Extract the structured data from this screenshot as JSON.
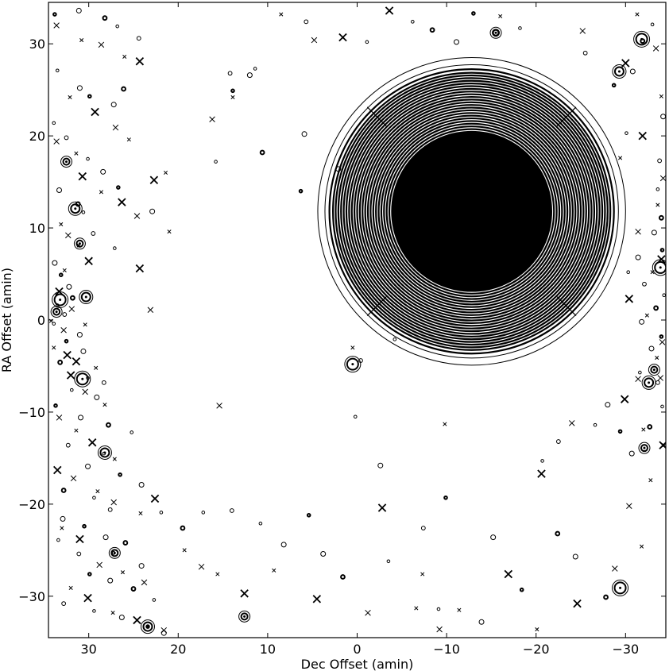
{
  "chart_data": {
    "type": "scatter",
    "title": "",
    "xlabel": "Dec Offset (amin)",
    "ylabel": "RA Offset (amin)",
    "xlim": [
      34.5,
      -34.5
    ],
    "ylim": [
      -34.5,
      34.5
    ],
    "x_ticks": [
      30,
      20,
      10,
      0,
      -10,
      -20,
      -30
    ],
    "y_ticks": [
      30,
      20,
      10,
      0,
      -10,
      -20,
      -30
    ],
    "x_tick_labels": [
      "30",
      "20",
      "10",
      "0",
      "−10",
      "−20",
      "−30"
    ],
    "y_tick_labels": [
      "30",
      "20",
      "10",
      "0",
      "−10",
      "−20",
      "−30"
    ],
    "grid": false,
    "legend": "none",
    "colors": {
      "ink": "#000000",
      "background": "#ffffff"
    },
    "series": [
      {
        "marker": "circle",
        "points": [
          [
            33.8,
            33.2
          ],
          [
            31.1,
            33.6
          ],
          [
            28.2,
            32.8
          ],
          [
            26.8,
            31.9
          ],
          [
            24.4,
            30.6
          ],
          [
            33.5,
            27.1
          ],
          [
            31.0,
            25.2
          ],
          [
            29.9,
            24.3
          ],
          [
            27.2,
            23.4
          ],
          [
            26.1,
            25.1
          ],
          [
            33.9,
            21.4
          ],
          [
            32.5,
            19.8
          ],
          [
            30.1,
            17.5
          ],
          [
            28.4,
            16.1
          ],
          [
            26.7,
            14.4
          ],
          [
            33.3,
            14.1
          ],
          [
            31.2,
            12.6
          ],
          [
            30.6,
            11.7
          ],
          [
            29.5,
            9.4
          ],
          [
            27.1,
            7.8
          ],
          [
            33.8,
            6.2
          ],
          [
            33.1,
            4.9
          ],
          [
            32.2,
            3.6
          ],
          [
            31.8,
            2.4
          ],
          [
            33.5,
            1.6
          ],
          [
            32.7,
            0.6
          ],
          [
            33.9,
            -0.4
          ],
          [
            31.0,
            -1.6
          ],
          [
            32.5,
            -2.3
          ],
          [
            30.6,
            -3.4
          ],
          [
            33.2,
            -4.6
          ],
          [
            30.1,
            -6.3
          ],
          [
            28.3,
            -6.8
          ],
          [
            31.9,
            -7.6
          ],
          [
            29.1,
            -8.4
          ],
          [
            33.7,
            -9.3
          ],
          [
            30.9,
            -10.6
          ],
          [
            27.8,
            -11.4
          ],
          [
            25.2,
            -12.2
          ],
          [
            32.3,
            -13.6
          ],
          [
            28.3,
            -14.5
          ],
          [
            30.1,
            -15.9
          ],
          [
            26.5,
            -16.8
          ],
          [
            24.1,
            -17.9
          ],
          [
            32.8,
            -18.5
          ],
          [
            29.4,
            -19.3
          ],
          [
            27.6,
            -20.6
          ],
          [
            21.9,
            -20.9
          ],
          [
            32.9,
            -21.6
          ],
          [
            30.5,
            -22.4
          ],
          [
            28.1,
            -23.6
          ],
          [
            25.9,
            -24.2
          ],
          [
            33.4,
            -23.9
          ],
          [
            31.1,
            -25.4
          ],
          [
            27.2,
            -25.3
          ],
          [
            24.1,
            -26.7
          ],
          [
            29.9,
            -27.6
          ],
          [
            27.6,
            -28.3
          ],
          [
            25.0,
            -29.2
          ],
          [
            22.7,
            -30.4
          ],
          [
            32.8,
            -30.8
          ],
          [
            29.4,
            -31.6
          ],
          [
            26.3,
            -32.3
          ],
          [
            23.4,
            -33.3
          ],
          [
            21.6,
            -34.0
          ],
          [
            19.5,
            -22.6
          ],
          [
            17.2,
            -20.9
          ],
          [
            14.0,
            -20.7
          ],
          [
            10.8,
            -22.1
          ],
          [
            8.2,
            -24.4
          ],
          [
            5.4,
            -21.2
          ],
          [
            3.8,
            -25.4
          ],
          [
            1.6,
            -27.9
          ],
          [
            -3.5,
            -26.2
          ],
          [
            -7.4,
            -22.6
          ],
          [
            -9.1,
            -31.4
          ],
          [
            -13.9,
            -32.8
          ],
          [
            -18.4,
            -29.3
          ],
          [
            -24.4,
            -25.7
          ],
          [
            -27.8,
            -30.1
          ],
          [
            -20.7,
            -15.3
          ],
          [
            -22.5,
            -13.2
          ],
          [
            -26.6,
            -11.4
          ],
          [
            -28.0,
            -9.2
          ],
          [
            -29.4,
            -12.1
          ],
          [
            -30.7,
            -14.5
          ],
          [
            -32.7,
            -11.6
          ],
          [
            -34.1,
            -9.4
          ],
          [
            -33.6,
            -6.8
          ],
          [
            -31.6,
            -5.7
          ],
          [
            -32.9,
            -3.1
          ],
          [
            -34.0,
            -1.8
          ],
          [
            -31.8,
            -0.2
          ],
          [
            -33.4,
            1.3
          ],
          [
            -34.3,
            2.7
          ],
          [
            -32.1,
            3.9
          ],
          [
            -30.3,
            5.2
          ],
          [
            -31.4,
            6.8
          ],
          [
            -34.1,
            7.6
          ],
          [
            -33.2,
            9.5
          ],
          [
            -34.0,
            11.1
          ],
          [
            -33.6,
            14.2
          ],
          [
            -33.8,
            17.3
          ],
          [
            -30.1,
            20.3
          ],
          [
            -34.2,
            22.1
          ],
          [
            -28.7,
            25.5
          ],
          [
            -30.8,
            27.0
          ],
          [
            -31.9,
            30.3
          ],
          [
            -33.0,
            32.1
          ],
          [
            -25.5,
            29.0
          ],
          [
            -18.2,
            31.7
          ],
          [
            -15.5,
            31.2
          ],
          [
            -13.0,
            33.3
          ],
          [
            -11.1,
            30.2
          ],
          [
            -8.4,
            31.5
          ],
          [
            -6.2,
            32.4
          ],
          [
            5.7,
            32.4
          ],
          [
            -1.1,
            30.2
          ],
          [
            12.0,
            26.6
          ],
          [
            13.9,
            24.9
          ],
          [
            5.9,
            20.2
          ],
          [
            10.6,
            18.2
          ],
          [
            0.2,
            -10.5
          ],
          [
            -0.4,
            -4.4
          ],
          [
            -4.2,
            -2.1
          ],
          [
            -2.6,
            -15.8
          ],
          [
            -9.9,
            -19.3
          ],
          [
            -15.2,
            -23.6
          ],
          [
            -22.4,
            -23.2
          ],
          [
            15.8,
            17.2
          ],
          [
            14.2,
            26.8
          ],
          [
            11.4,
            27.3
          ],
          [
            2.1,
            16.4
          ],
          [
            6.3,
            14.0
          ],
          [
            22.9,
            11.8
          ]
        ]
      },
      {
        "marker": "cross",
        "points": [
          [
            33.6,
            32.0
          ],
          [
            30.8,
            30.4
          ],
          [
            28.6,
            29.9
          ],
          [
            26.0,
            28.6
          ],
          [
            24.3,
            28.1
          ],
          [
            32.1,
            24.2
          ],
          [
            29.3,
            22.6
          ],
          [
            27.0,
            20.9
          ],
          [
            25.5,
            19.6
          ],
          [
            33.6,
            19.4
          ],
          [
            31.4,
            18.1
          ],
          [
            30.7,
            15.6
          ],
          [
            28.6,
            13.9
          ],
          [
            26.3,
            12.8
          ],
          [
            24.6,
            11.3
          ],
          [
            33.1,
            10.4
          ],
          [
            32.3,
            9.2
          ],
          [
            31.1,
            8.1
          ],
          [
            30.0,
            6.4
          ],
          [
            32.7,
            5.4
          ],
          [
            33.3,
            3.1
          ],
          [
            31.9,
            1.2
          ],
          [
            30.4,
            -0.5
          ],
          [
            32.8,
            -1.1
          ],
          [
            33.9,
            -3.0
          ],
          [
            31.4,
            -4.5
          ],
          [
            29.2,
            -5.2
          ],
          [
            32.0,
            -6.0
          ],
          [
            30.4,
            -7.8
          ],
          [
            28.2,
            -9.2
          ],
          [
            33.3,
            -10.6
          ],
          [
            31.4,
            -12.0
          ],
          [
            29.6,
            -13.3
          ],
          [
            27.1,
            -15.1
          ],
          [
            33.5,
            -16.3
          ],
          [
            31.7,
            -17.2
          ],
          [
            29.0,
            -18.6
          ],
          [
            27.2,
            -19.8
          ],
          [
            24.2,
            -21.0
          ],
          [
            22.6,
            -19.4
          ],
          [
            33.0,
            -22.6
          ],
          [
            31.0,
            -23.8
          ],
          [
            28.8,
            -26.6
          ],
          [
            26.2,
            -27.4
          ],
          [
            23.8,
            -28.5
          ],
          [
            32.0,
            -29.1
          ],
          [
            30.1,
            -30.2
          ],
          [
            27.3,
            -31.8
          ],
          [
            24.6,
            -32.6
          ],
          [
            21.6,
            -33.7
          ],
          [
            19.3,
            -25.0
          ],
          [
            17.4,
            -26.8
          ],
          [
            15.6,
            -27.6
          ],
          [
            12.6,
            -29.7
          ],
          [
            9.3,
            -27.2
          ],
          [
            4.5,
            -30.3
          ],
          [
            -1.2,
            -31.8
          ],
          [
            -6.6,
            -31.3
          ],
          [
            -9.2,
            -33.6
          ],
          [
            -11.4,
            -31.5
          ],
          [
            -16.9,
            -27.6
          ],
          [
            -20.1,
            -33.6
          ],
          [
            -24.6,
            -30.8
          ],
          [
            -28.8,
            -27.0
          ],
          [
            -31.8,
            -24.6
          ],
          [
            -30.4,
            -20.2
          ],
          [
            -32.8,
            -17.4
          ],
          [
            -34.2,
            -13.6
          ],
          [
            -32.0,
            -11.9
          ],
          [
            -29.9,
            -8.6
          ],
          [
            -31.4,
            -6.4
          ],
          [
            -33.5,
            -4.1
          ],
          [
            -34.1,
            -2.4
          ],
          [
            -32.4,
            0.5
          ],
          [
            -30.4,
            2.3
          ],
          [
            -33.0,
            5.2
          ],
          [
            -34.0,
            6.6
          ],
          [
            -31.4,
            9.6
          ],
          [
            -33.6,
            12.5
          ],
          [
            -34.2,
            15.4
          ],
          [
            -29.4,
            17.6
          ],
          [
            -31.9,
            20.0
          ],
          [
            -34.0,
            24.3
          ],
          [
            -30.0,
            27.9
          ],
          [
            -33.4,
            29.5
          ],
          [
            -31.3,
            33.2
          ],
          [
            -25.2,
            31.4
          ],
          [
            -16.0,
            33.0
          ],
          [
            -3.6,
            33.6
          ],
          [
            8.5,
            33.2
          ],
          [
            1.6,
            30.7
          ],
          [
            4.8,
            30.4
          ],
          [
            13.9,
            24.2
          ],
          [
            16.2,
            21.8
          ],
          [
            21.4,
            16.0
          ],
          [
            22.7,
            15.2
          ],
          [
            21.0,
            9.6
          ],
          [
            24.3,
            5.6
          ],
          [
            23.1,
            1.1
          ],
          [
            0.5,
            -3.0
          ],
          [
            15.4,
            -9.3
          ],
          [
            -9.8,
            -11.3
          ],
          [
            -2.8,
            -20.4
          ],
          [
            -7.3,
            -27.6
          ],
          [
            -20.6,
            -16.7
          ],
          [
            -24.0,
            -11.2
          ],
          [
            -34.3,
            -13.6
          ],
          [
            -33.9,
            -6.3
          ],
          [
            34.2,
            -0.1
          ],
          [
            32.4,
            -3.8
          ]
        ]
      },
      {
        "marker": "ring",
        "points": [
          [
            31.5,
            12.1
          ],
          [
            31.0,
            8.3
          ],
          [
            33.2,
            2.2
          ],
          [
            33.6,
            0.9
          ],
          [
            30.7,
            -6.4
          ],
          [
            28.2,
            -14.4
          ],
          [
            27.1,
            -25.3
          ],
          [
            23.4,
            -33.3
          ],
          [
            12.6,
            -32.2
          ],
          [
            0.5,
            -4.8
          ],
          [
            -15.5,
            31.2
          ],
          [
            -31.8,
            30.5
          ],
          [
            -29.3,
            27.0
          ],
          [
            -33.2,
            -5.4
          ],
          [
            -32.6,
            -6.8
          ],
          [
            -32.1,
            -13.9
          ],
          [
            -29.4,
            -29.1
          ],
          [
            32.5,
            17.2
          ],
          [
            -33.9,
            5.7
          ],
          [
            30.3,
            2.5
          ]
        ]
      }
    ],
    "bright_source": {
      "center": [
        -12.8,
        11.8
      ],
      "ring_radii": [
        17.2,
        16.4,
        15.9,
        15.5,
        15.2,
        14.9,
        14.6,
        14.3,
        14.0,
        13.7,
        13.4,
        13.1,
        12.8,
        12.5,
        12.2,
        11.9,
        11.6,
        11.3,
        11.0,
        10.7,
        10.4,
        10.1,
        9.8,
        9.5,
        9.2
      ],
      "core_radius": 9.0
    }
  }
}
